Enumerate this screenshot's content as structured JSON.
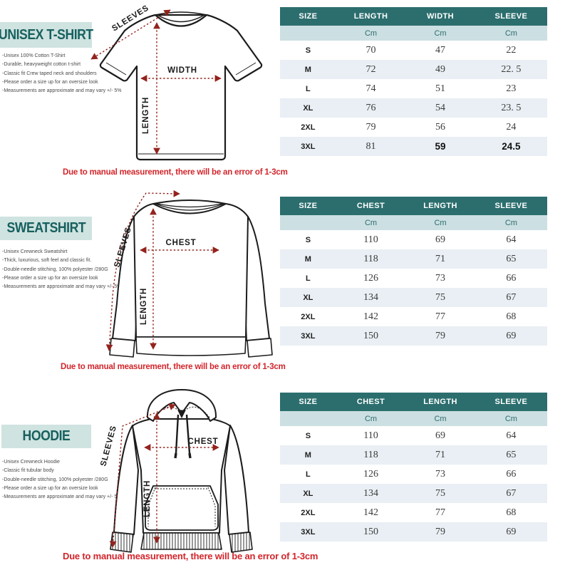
{
  "colors": {
    "table_header_bg": "#2c6e6e",
    "table_header_text": "#ffffff",
    "unit_row_bg": "#ccdfe2",
    "unit_text": "#2c6e6e",
    "row_alt_bg": "#e9eff4",
    "title_box_bg": "#cfe3e0",
    "title_text": "#17605f",
    "warning_red": "#d2252b",
    "arrow_red": "#93231d",
    "drawing_line": "#1c1c1c"
  },
  "sections": [
    {
      "title": "UNISEX T-SHIRT",
      "bullets": [
        "-Unisex 100% Cotton T-Shirt",
        "-Durable, heavyweight cotton t-shirt",
        "-Classic fit Crew taped neck and shoulders",
        "-Please order a size up for an oversize look",
        "-Measurements are approximate and may vary +/- 5%"
      ],
      "diagram": {
        "sleeves_label": "SLEEVES",
        "horizontal_label": "WIDTH",
        "vertical_label": "LENGTH"
      },
      "warning": "Due to manual measurement, there will be an error of 1-3cm",
      "table": {
        "columns": [
          "SIZE",
          "LENGTH",
          "WIDTH",
          "SLEEVE"
        ],
        "unit": "Cm",
        "rows": [
          {
            "size": "S",
            "values": [
              "70",
              "47",
              "22"
            ]
          },
          {
            "size": "M",
            "values": [
              "72",
              "49",
              "22. 5"
            ]
          },
          {
            "size": "L",
            "values": [
              "74",
              "51",
              "23"
            ]
          },
          {
            "size": "XL",
            "values": [
              "76",
              "54",
              "23. 5"
            ]
          },
          {
            "size": "2XL",
            "values": [
              "79",
              "56",
              "24"
            ]
          },
          {
            "size": "3XL",
            "values": [
              "81",
              "59",
              "24.5"
            ],
            "bold": [
              1,
              2
            ]
          }
        ]
      }
    },
    {
      "title": "SWEATSHIRT",
      "bullets": [
        "-Unisex Crewneck Sweatshirt",
        "-Thick, luxurious, soft feel and classic fit.",
        "-Double-needle stitching, 100% polyester /280G",
        "-Please order a size up for an oversize look",
        "-Measurements are approximate and may vary +/- 5%"
      ],
      "diagram": {
        "sleeves_label": "SLEEVES",
        "horizontal_label": "CHEST",
        "vertical_label": "LENGTH"
      },
      "warning": "Due to manual measurement, there will be an error of 1-3cm",
      "table": {
        "columns": [
          "SIZE",
          "CHEST",
          "LENGTH",
          "SLEEVE"
        ],
        "unit": "Cm",
        "rows": [
          {
            "size": "S",
            "values": [
              "110",
              "69",
              "64"
            ]
          },
          {
            "size": "M",
            "values": [
              "118",
              "71",
              "65"
            ]
          },
          {
            "size": "L",
            "values": [
              "126",
              "73",
              "66"
            ]
          },
          {
            "size": "XL",
            "values": [
              "134",
              "75",
              "67"
            ]
          },
          {
            "size": "2XL",
            "values": [
              "142",
              "77",
              "68"
            ]
          },
          {
            "size": "3XL",
            "values": [
              "150",
              "79",
              "69"
            ]
          }
        ]
      }
    },
    {
      "title": "HOODIE",
      "bullets": [
        "-Unisex Crewneck Hoodie",
        "-Classic fit tubular body",
        "-Double-needle stitching, 100% polyester /280G",
        "-Please order a size up for an oversize look",
        "-Measurements are approximate and may vary +/- 5%"
      ],
      "diagram": {
        "sleeves_label": "SLEEVES",
        "horizontal_label": "CHEST",
        "vertical_label": "LENGTH"
      },
      "warning": "Due to manual measurement, there will be an error of 1-3cm",
      "table": {
        "columns": [
          "SIZE",
          "CHEST",
          "LENGTH",
          "SLEEVE"
        ],
        "unit": "Cm",
        "rows": [
          {
            "size": "S",
            "values": [
              "110",
              "69",
              "64"
            ]
          },
          {
            "size": "M",
            "values": [
              "118",
              "71",
              "65"
            ]
          },
          {
            "size": "L",
            "values": [
              "126",
              "73",
              "66"
            ]
          },
          {
            "size": "XL",
            "values": [
              "134",
              "75",
              "67"
            ]
          },
          {
            "size": "2XL",
            "values": [
              "142",
              "77",
              "68"
            ]
          },
          {
            "size": "3XL",
            "values": [
              "150",
              "79",
              "69"
            ]
          }
        ]
      }
    }
  ]
}
